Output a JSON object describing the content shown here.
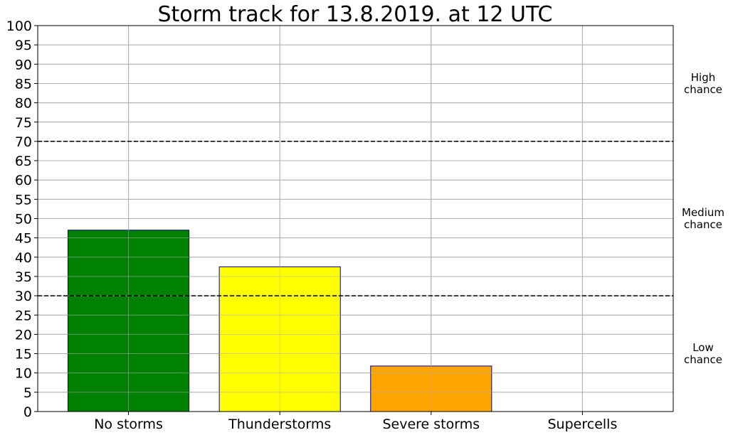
{
  "chart_data": {
    "type": "bar",
    "title": "Storm track for 13.8.2019. at 12 UTC",
    "xlabel": "",
    "ylabel": "",
    "categories": [
      "No storms",
      "Thunderstorms",
      "Severe storms",
      "Supercells"
    ],
    "values": [
      47,
      37.5,
      11.8,
      0
    ],
    "colors": [
      "#008000",
      "#ffff00",
      "#ffa500",
      "#ff0000"
    ],
    "bar_edge_color": "#000080",
    "ylim": [
      0,
      100
    ],
    "yticks": [
      0,
      5,
      10,
      15,
      20,
      25,
      30,
      35,
      40,
      45,
      50,
      55,
      60,
      65,
      70,
      75,
      80,
      85,
      90,
      95,
      100
    ],
    "grid": true,
    "threshold_lines": [
      30,
      70
    ],
    "threshold_style": "dashed",
    "zones": [
      {
        "lines": [
          "High",
          "chance"
        ],
        "y": 85
      },
      {
        "lines": [
          "Medium",
          "chance"
        ],
        "y": 50
      },
      {
        "lines": [
          "Low",
          "chance"
        ],
        "y": 15
      }
    ]
  }
}
